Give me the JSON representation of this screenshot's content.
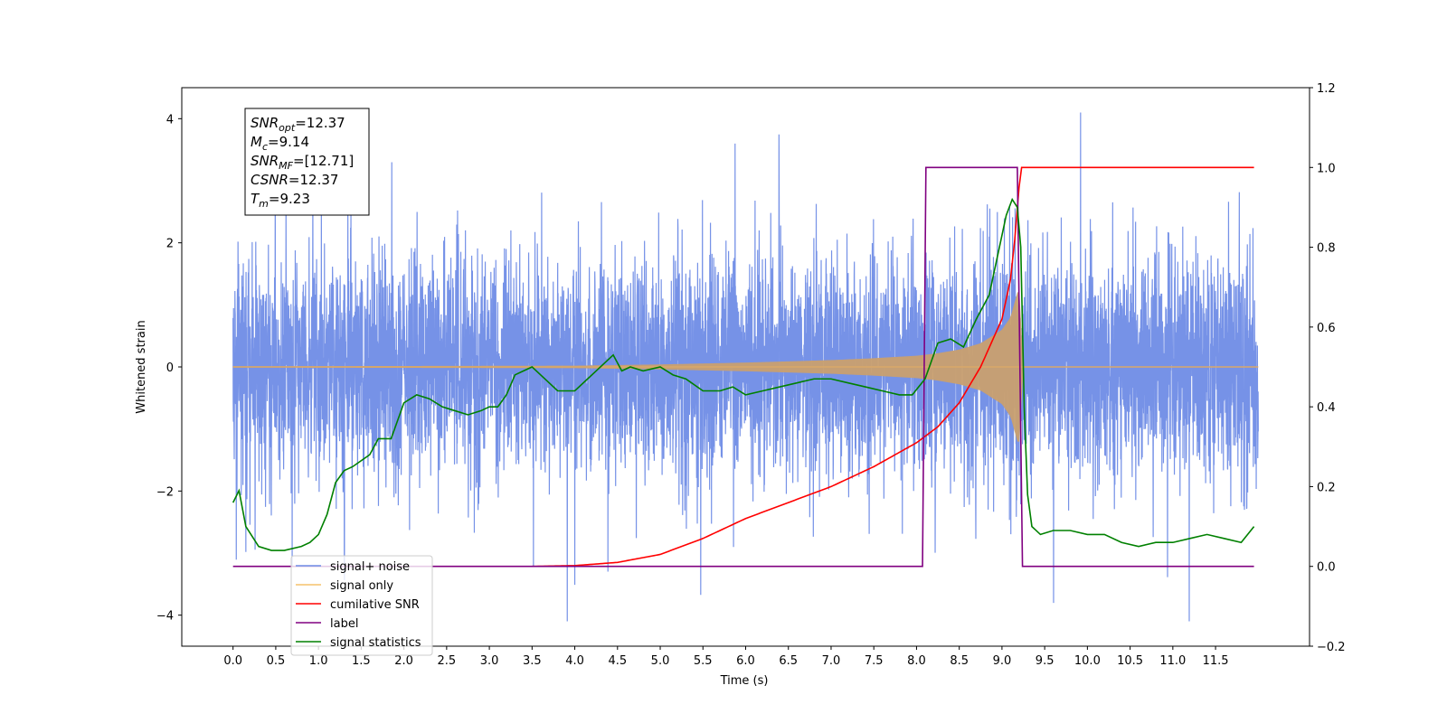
{
  "chart_data": {
    "type": "line",
    "xlabel": "Time (s)",
    "ylabel": "Whitened strain",
    "xlim": [
      -0.6,
      12.6
    ],
    "ylim": [
      -4.5,
      4.5
    ],
    "y2lim": [
      -0.2,
      1.2
    ],
    "x_ticks": [
      "0.0",
      "0.5",
      "1.0",
      "1.5",
      "2.0",
      "2.5",
      "3.0",
      "3.5",
      "4.0",
      "4.5",
      "5.0",
      "5.5",
      "6.0",
      "6.5",
      "7.0",
      "7.5",
      "8.0",
      "8.5",
      "9.0",
      "9.5",
      "10.0",
      "10.5",
      "11.0",
      "11.5"
    ],
    "y_ticks": [
      "4",
      "2",
      "0",
      "−2",
      "−4"
    ],
    "y2_ticks": [
      "1.2",
      "1.0",
      "0.8",
      "0.6",
      "0.4",
      "0.2",
      "0.0",
      "−0.2"
    ],
    "grid": false,
    "annotation": {
      "lines": [
        {
          "base": "SNR",
          "sub": "opt",
          "value": "=12.37"
        },
        {
          "base": "M",
          "sub": "c",
          "value": "=9.14"
        },
        {
          "base": "SNR",
          "sub": "MF",
          "value": "=[12.71]"
        },
        {
          "base": "CSNR",
          "sub": "",
          "value": "=12.37"
        },
        {
          "base": "T",
          "sub": "m",
          "value": "=9.23"
        }
      ]
    },
    "legend": {
      "placement": "lower-left",
      "entries": [
        {
          "label": "signal+ noise",
          "color": "#6f8ce6"
        },
        {
          "label": "signal only",
          "color": "#f5c26b"
        },
        {
          "label": "cumilative SNR",
          "color": "#ff0000"
        },
        {
          "label": "label",
          "color": "#800080"
        },
        {
          "label": "signal statistics",
          "color": "#008000"
        }
      ]
    },
    "series": [
      {
        "name": "signal+ noise",
        "axis": "left",
        "color": "#6f8ce6",
        "x_range": [
          0.0,
          12.0
        ],
        "typical_envelope": [
          -2.0,
          2.0
        ],
        "extreme_range": [
          -4.1,
          4.1
        ],
        "inspiral_end": 9.23
      },
      {
        "name": "signal only",
        "axis": "left",
        "color": "#d9a86a",
        "x_range": [
          0.0,
          12.0
        ],
        "peak_time": 9.23,
        "amplitude_envelope": {
          "x": [
            0.0,
            4.0,
            5.0,
            6.0,
            7.0,
            7.5,
            8.0,
            8.25,
            8.5,
            8.75,
            9.0,
            9.1,
            9.2,
            9.25
          ],
          "y": [
            0.01,
            0.02,
            0.04,
            0.07,
            0.11,
            0.14,
            0.18,
            0.22,
            0.28,
            0.38,
            0.6,
            0.8,
            1.3,
            0.03
          ]
        }
      },
      {
        "name": "cumilative SNR",
        "axis": "right",
        "color": "#ff0000",
        "x": [
          3.5,
          4.0,
          4.5,
          5.0,
          5.5,
          6.0,
          6.5,
          7.0,
          7.5,
          8.0,
          8.25,
          8.5,
          8.75,
          9.0,
          9.1,
          9.15,
          9.2,
          9.23,
          9.25,
          11.95
        ],
        "y": [
          0.0,
          0.002,
          0.01,
          0.03,
          0.07,
          0.12,
          0.16,
          0.2,
          0.25,
          0.31,
          0.35,
          0.41,
          0.5,
          0.62,
          0.72,
          0.82,
          0.95,
          1.0,
          1.0,
          1.0
        ]
      },
      {
        "name": "label",
        "axis": "right",
        "color": "#800080",
        "x": [
          0.0,
          8.07,
          8.11,
          9.18,
          9.24,
          11.95
        ],
        "y": [
          0.0,
          0.0,
          1.0,
          1.0,
          0.0,
          0.0
        ]
      },
      {
        "name": "signal statistics",
        "axis": "right",
        "color": "#008000",
        "x": [
          0.0,
          0.07,
          0.15,
          0.3,
          0.45,
          0.6,
          0.8,
          0.9,
          1.0,
          1.1,
          1.2,
          1.3,
          1.4,
          1.6,
          1.7,
          1.85,
          2.0,
          2.15,
          2.3,
          2.45,
          2.6,
          2.75,
          2.9,
          3.0,
          3.1,
          3.2,
          3.3,
          3.4,
          3.5,
          3.6,
          3.8,
          4.0,
          4.15,
          4.25,
          4.35,
          4.45,
          4.55,
          4.65,
          4.8,
          5.0,
          5.15,
          5.3,
          5.5,
          5.7,
          5.85,
          6.0,
          6.2,
          6.4,
          6.6,
          6.8,
          7.0,
          7.2,
          7.4,
          7.6,
          7.8,
          7.95,
          8.1,
          8.25,
          8.4,
          8.55,
          8.7,
          8.85,
          8.95,
          9.05,
          9.12,
          9.18,
          9.22,
          9.26,
          9.3,
          9.35,
          9.45,
          9.6,
          9.8,
          10.0,
          10.2,
          10.4,
          10.6,
          10.8,
          11.0,
          11.2,
          11.4,
          11.6,
          11.8,
          11.95
        ],
        "y": [
          0.16,
          0.19,
          0.1,
          0.05,
          0.04,
          0.04,
          0.05,
          0.06,
          0.08,
          0.13,
          0.21,
          0.24,
          0.25,
          0.28,
          0.32,
          0.32,
          0.41,
          0.43,
          0.42,
          0.4,
          0.39,
          0.38,
          0.39,
          0.4,
          0.4,
          0.43,
          0.48,
          0.49,
          0.5,
          0.48,
          0.44,
          0.44,
          0.47,
          0.49,
          0.51,
          0.53,
          0.49,
          0.5,
          0.49,
          0.5,
          0.48,
          0.47,
          0.44,
          0.44,
          0.45,
          0.43,
          0.44,
          0.45,
          0.46,
          0.47,
          0.47,
          0.46,
          0.45,
          0.44,
          0.43,
          0.43,
          0.47,
          0.56,
          0.57,
          0.55,
          0.62,
          0.68,
          0.78,
          0.88,
          0.92,
          0.9,
          0.8,
          0.4,
          0.18,
          0.1,
          0.08,
          0.09,
          0.09,
          0.08,
          0.08,
          0.06,
          0.05,
          0.06,
          0.06,
          0.07,
          0.08,
          0.07,
          0.06,
          0.1
        ]
      }
    ]
  }
}
